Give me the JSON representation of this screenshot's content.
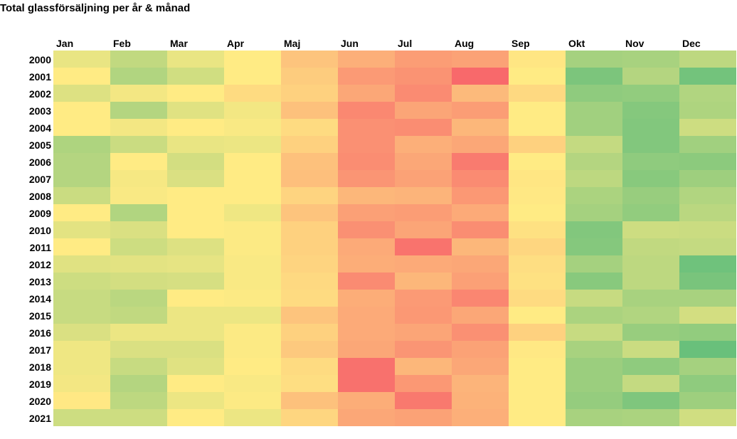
{
  "chart_data": {
    "type": "heatmap",
    "title": "Total glassförsäljning per år & månad",
    "xlabel": "",
    "ylabel": "",
    "color_scale": {
      "low": "#63be7b",
      "mid": "#ffeb84",
      "high": "#f8696b",
      "range": [
        0,
        10
      ]
    },
    "columns": [
      "Jan",
      "Feb",
      "Mar",
      "Apr",
      "Maj",
      "Jun",
      "Jul",
      "Aug",
      "Sep",
      "Okt",
      "Nov",
      "Dec"
    ],
    "rows": [
      "2000",
      "2001",
      "2002",
      "2003",
      "2004",
      "2005",
      "2006",
      "2007",
      "2008",
      "2009",
      "2010",
      "2011",
      "2012",
      "2013",
      "2014",
      "2015",
      "2016",
      "2017",
      "2018",
      "2019",
      "2020",
      "2021"
    ],
    "values": [
      [
        4.3,
        3.0,
        4.3,
        5.0,
        6.5,
        7.3,
        8.0,
        7.8,
        5.2,
        2.1,
        2.2,
        2.9
      ],
      [
        5.0,
        2.5,
        3.5,
        5.0,
        6.2,
        8.1,
        8.4,
        10.0,
        5.0,
        0.8,
        2.6,
        0.5
      ],
      [
        3.9,
        4.6,
        5.0,
        5.6,
        6.0,
        7.6,
        8.7,
        6.9,
        5.7,
        1.4,
        1.5,
        2.5
      ],
      [
        5.0,
        2.6,
        4.0,
        4.6,
        6.6,
        8.8,
        7.7,
        8.0,
        5.0,
        2.0,
        1.1,
        2.4
      ],
      [
        5.0,
        4.6,
        5.0,
        4.8,
        5.6,
        8.5,
        8.6,
        7.0,
        5.0,
        2.0,
        1.0,
        3.4
      ],
      [
        2.4,
        3.3,
        4.3,
        4.4,
        6.0,
        8.5,
        7.3,
        7.6,
        6.0,
        3.1,
        1.0,
        2.0
      ],
      [
        2.6,
        5.0,
        3.6,
        5.0,
        6.6,
        8.6,
        7.6,
        9.3,
        5.0,
        2.6,
        1.4,
        1.3
      ],
      [
        2.6,
        4.7,
        3.8,
        5.0,
        6.7,
        8.3,
        7.8,
        8.7,
        5.2,
        2.9,
        1.2,
        1.9
      ],
      [
        3.3,
        4.8,
        5.0,
        5.0,
        5.9,
        7.0,
        7.1,
        8.2,
        5.1,
        2.3,
        1.7,
        2.5
      ],
      [
        5.0,
        2.5,
        5.0,
        4.5,
        6.5,
        7.9,
        8.0,
        7.5,
        5.0,
        2.1,
        1.5,
        2.8
      ],
      [
        4.1,
        3.8,
        5.0,
        4.9,
        6.0,
        8.5,
        7.7,
        8.6,
        5.4,
        1.0,
        3.4,
        3.3
      ],
      [
        5.0,
        3.4,
        3.9,
        4.9,
        6.0,
        7.5,
        9.6,
        7.0,
        5.8,
        1.1,
        3.0,
        3.1
      ],
      [
        4.0,
        4.1,
        4.2,
        4.8,
        5.9,
        7.4,
        7.5,
        7.6,
        5.5,
        2.1,
        2.9,
        0.4
      ],
      [
        3.4,
        3.6,
        3.7,
        4.8,
        5.7,
        8.7,
        7.0,
        7.9,
        5.4,
        1.2,
        2.9,
        0.7
      ],
      [
        3.2,
        2.8,
        5.0,
        4.9,
        5.6,
        7.4,
        8.1,
        8.9,
        5.6,
        3.2,
        2.2,
        2.2
      ],
      [
        3.2,
        3.0,
        4.4,
        4.4,
        6.5,
        7.5,
        8.2,
        7.6,
        5.0,
        2.3,
        2.5,
        3.6
      ],
      [
        3.8,
        4.4,
        4.4,
        4.9,
        6.0,
        7.5,
        7.7,
        8.5,
        6.0,
        3.2,
        1.7,
        1.5
      ],
      [
        4.5,
        3.8,
        3.8,
        4.9,
        6.3,
        7.6,
        8.3,
        7.8,
        5.1,
        2.2,
        3.3,
        0.2
      ],
      [
        4.5,
        3.2,
        4.0,
        5.0,
        5.6,
        9.7,
        7.0,
        7.6,
        5.0,
        1.8,
        1.4,
        2.1
      ],
      [
        4.6,
        2.6,
        5.0,
        4.8,
        5.5,
        9.7,
        8.2,
        7.1,
        5.0,
        1.8,
        3.1,
        1.4
      ],
      [
        5.1,
        2.9,
        4.4,
        4.9,
        6.6,
        7.4,
        9.4,
        7.2,
        5.0,
        1.6,
        0.9,
        1.9
      ],
      [
        3.4,
        3.4,
        5.0,
        4.4,
        5.8,
        7.6,
        7.8,
        7.3,
        5.0,
        2.2,
        2.3,
        3.5
      ]
    ]
  }
}
